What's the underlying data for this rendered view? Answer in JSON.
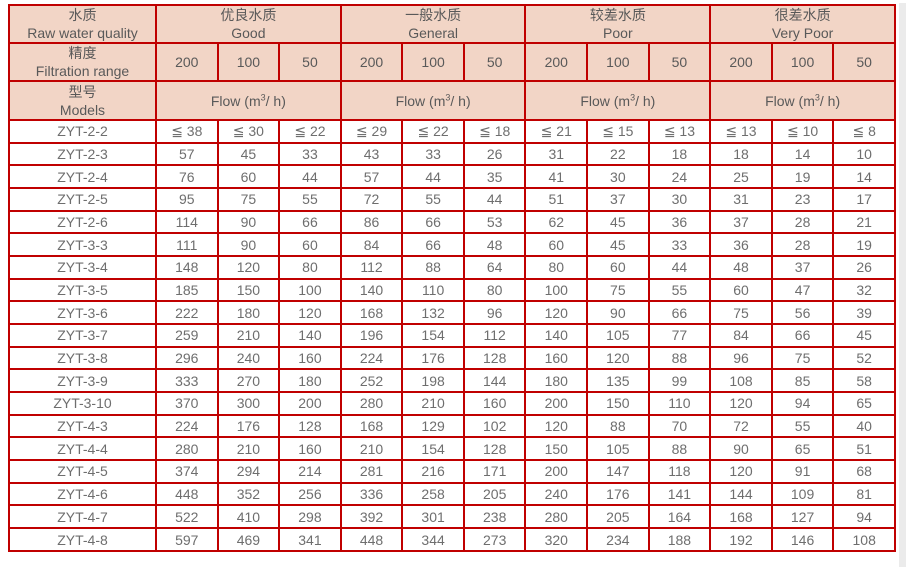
{
  "colors": {
    "header_bg": "#f2d5c6",
    "grid_border": "#c00000",
    "header_text": "#595959",
    "data_text": "#6e6e6e",
    "page_bg": "#ffffff",
    "right_strip": "#ebebeb"
  },
  "table": {
    "col1_row1": {
      "zh": "水质",
      "en": "Raw water quality"
    },
    "col1_row2": {
      "zh": "精度",
      "en": "Filtration range"
    },
    "col1_row3": {
      "zh": "型号",
      "en": "Models"
    },
    "quality_groups": [
      {
        "zh": "优良水质",
        "en": "Good"
      },
      {
        "zh": "一般水质",
        "en": "General"
      },
      {
        "zh": "较差水质",
        "en": "Poor"
      },
      {
        "zh": "很差水质",
        "en": "Very Poor"
      }
    ],
    "filtration_values": [
      "200",
      "100",
      "50",
      "200",
      "100",
      "50",
      "200",
      "100",
      "50",
      "200",
      "100",
      "50"
    ],
    "flow_label": {
      "pre": "Flow (m",
      "sup": "3",
      "post": "/ h)"
    },
    "rows": [
      {
        "model": "ZYT-2-2",
        "values": [
          "≦ 38",
          "≦ 30",
          "≦ 22",
          "≦ 29",
          "≦ 22",
          "≦ 18",
          "≦ 21",
          "≦ 15",
          "≦ 13",
          "≦ 13",
          "≦ 10",
          "≦ 8"
        ]
      },
      {
        "model": "ZYT-2-3",
        "values": [
          "57",
          "45",
          "33",
          "43",
          "33",
          "26",
          "31",
          "22",
          "18",
          "18",
          "14",
          "10"
        ]
      },
      {
        "model": "ZYT-2-4",
        "values": [
          "76",
          "60",
          "44",
          "57",
          "44",
          "35",
          "41",
          "30",
          "24",
          "25",
          "19",
          "14"
        ]
      },
      {
        "model": "ZYT-2-5",
        "values": [
          "95",
          "75",
          "55",
          "72",
          "55",
          "44",
          "51",
          "37",
          "30",
          "31",
          "23",
          "17"
        ]
      },
      {
        "model": "ZYT-2-6",
        "values": [
          "114",
          "90",
          "66",
          "86",
          "66",
          "53",
          "62",
          "45",
          "36",
          "37",
          "28",
          "21"
        ]
      },
      {
        "model": "ZYT-3-3",
        "values": [
          "111",
          "90",
          "60",
          "84",
          "66",
          "48",
          "60",
          "45",
          "33",
          "36",
          "28",
          "19"
        ]
      },
      {
        "model": "ZYT-3-4",
        "values": [
          "148",
          "120",
          "80",
          "112",
          "88",
          "64",
          "80",
          "60",
          "44",
          "48",
          "37",
          "26"
        ]
      },
      {
        "model": "ZYT-3-5",
        "values": [
          "185",
          "150",
          "100",
          "140",
          "110",
          "80",
          "100",
          "75",
          "55",
          "60",
          "47",
          "32"
        ]
      },
      {
        "model": "ZYT-3-6",
        "values": [
          "222",
          "180",
          "120",
          "168",
          "132",
          "96",
          "120",
          "90",
          "66",
          "75",
          "56",
          "39"
        ]
      },
      {
        "model": "ZYT-3-7",
        "values": [
          "259",
          "210",
          "140",
          "196",
          "154",
          "112",
          "140",
          "105",
          "77",
          "84",
          "66",
          "45"
        ]
      },
      {
        "model": "ZYT-3-8",
        "values": [
          "296",
          "240",
          "160",
          "224",
          "176",
          "128",
          "160",
          "120",
          "88",
          "96",
          "75",
          "52"
        ]
      },
      {
        "model": "ZYT-3-9",
        "values": [
          "333",
          "270",
          "180",
          "252",
          "198",
          "144",
          "180",
          "135",
          "99",
          "108",
          "85",
          "58"
        ]
      },
      {
        "model": "ZYT-3-10",
        "values": [
          "370",
          "300",
          "200",
          "280",
          "210",
          "160",
          "200",
          "150",
          "110",
          "120",
          "94",
          "65"
        ]
      },
      {
        "model": "ZYT-4-3",
        "values": [
          "224",
          "176",
          "128",
          "168",
          "129",
          "102",
          "120",
          "88",
          "70",
          "72",
          "55",
          "40"
        ]
      },
      {
        "model": "ZYT-4-4",
        "values": [
          "280",
          "210",
          "160",
          "210",
          "154",
          "128",
          "150",
          "105",
          "88",
          "90",
          "65",
          "51"
        ]
      },
      {
        "model": "ZYT-4-5",
        "values": [
          "374",
          "294",
          "214",
          "281",
          "216",
          "171",
          "200",
          "147",
          "118",
          "120",
          "91",
          "68"
        ]
      },
      {
        "model": "ZYT-4-6",
        "values": [
          "448",
          "352",
          "256",
          "336",
          "258",
          "205",
          "240",
          "176",
          "141",
          "144",
          "109",
          "81"
        ]
      },
      {
        "model": "ZYT-4-7",
        "values": [
          "522",
          "410",
          "298",
          "392",
          "301",
          "238",
          "280",
          "205",
          "164",
          "168",
          "127",
          "94"
        ]
      },
      {
        "model": "ZYT-4-8",
        "values": [
          "597",
          "469",
          "341",
          "448",
          "344",
          "273",
          "320",
          "234",
          "188",
          "192",
          "146",
          "108"
        ]
      }
    ]
  }
}
